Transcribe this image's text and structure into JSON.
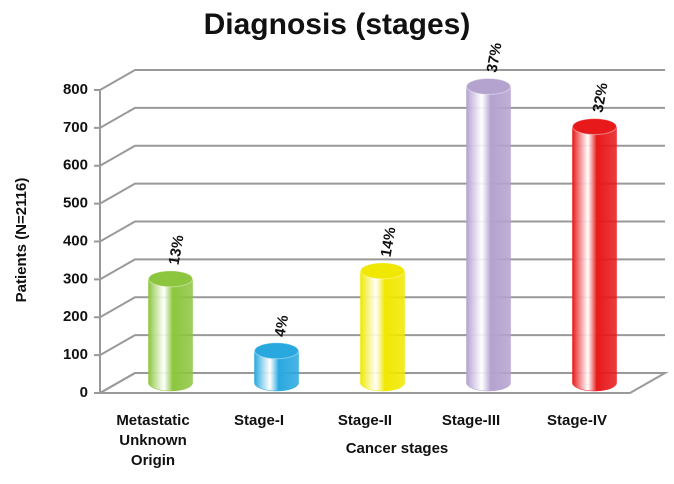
{
  "chart_data": {
    "type": "bar3d",
    "title": "Diagnosis (stages)",
    "y_label": "Patients (N=2116)",
    "x_label": "Cancer stages",
    "categories": [
      "Metastatic Unknown Origin",
      "Stage-I",
      "Stage-II",
      "Stage-III",
      "Stage-IV"
    ],
    "values": [
      275,
      85,
      296,
      783,
      677
    ],
    "value_labels": [
      "13%",
      "4%",
      "14%",
      "37%",
      "32%"
    ],
    "colors": [
      "#8cc63f",
      "#29a8e0",
      "#f0e800",
      "#b4a2cf",
      "#e8191b"
    ],
    "ylim": [
      0,
      800
    ],
    "yticks": [
      0,
      100,
      200,
      300,
      400,
      500,
      600,
      700,
      800
    ],
    "grid": true
  }
}
